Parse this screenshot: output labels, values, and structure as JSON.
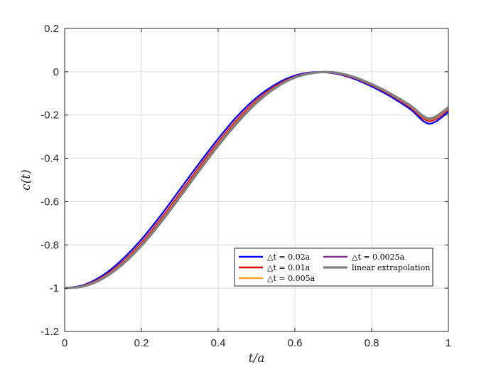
{
  "chart_data": {
    "type": "line",
    "xlabel": "t/a",
    "ylabel": "c(t)",
    "xlim": [
      0,
      1
    ],
    "ylim": [
      -1.2,
      0.2
    ],
    "xticks": [
      0,
      0.2,
      0.4,
      0.6,
      0.8,
      1
    ],
    "xtick_labels": [
      "0",
      "0.2",
      "0.4",
      "0.6",
      "0.8",
      "1"
    ],
    "yticks": [
      0.2,
      0,
      -0.2,
      -0.4,
      -0.6,
      -0.8,
      -1,
      -1.2
    ],
    "ytick_labels": [
      "0.2",
      "0",
      "-0.2",
      "-0.4",
      "-0.6",
      "-0.8",
      "-1",
      "-1.2"
    ],
    "grid": true,
    "legend_position": "bottom-right",
    "x": [
      0,
      0.05,
      0.1,
      0.15,
      0.2,
      0.25,
      0.3,
      0.35,
      0.4,
      0.45,
      0.5,
      0.55,
      0.6,
      0.65,
      0.7,
      0.75,
      0.8,
      0.85,
      0.9,
      0.95,
      1.0
    ],
    "series": [
      {
        "name": "△t = 0.02a",
        "color": "#0000ff",
        "values": [
          -1.0,
          -0.985,
          -0.94,
          -0.868,
          -0.775,
          -0.665,
          -0.545,
          -0.425,
          -0.31,
          -0.205,
          -0.12,
          -0.058,
          -0.018,
          -0.002,
          -0.007,
          -0.03,
          -0.068,
          -0.115,
          -0.172,
          -0.24,
          -0.185
        ]
      },
      {
        "name": "△t = 0.01a",
        "color": "#e8000b",
        "values": [
          -1.0,
          -0.988,
          -0.948,
          -0.88,
          -0.79,
          -0.682,
          -0.563,
          -0.442,
          -0.326,
          -0.22,
          -0.132,
          -0.066,
          -0.023,
          -0.003,
          -0.005,
          -0.026,
          -0.062,
          -0.108,
          -0.163,
          -0.228,
          -0.175
        ]
      },
      {
        "name": "△t = 0.005a",
        "color": "#f5a623",
        "values": [
          -1.0,
          -0.989,
          -0.951,
          -0.885,
          -0.797,
          -0.69,
          -0.572,
          -0.451,
          -0.334,
          -0.228,
          -0.138,
          -0.07,
          -0.025,
          -0.004,
          -0.004,
          -0.024,
          -0.06,
          -0.105,
          -0.159,
          -0.222,
          -0.17
        ]
      },
      {
        "name": "△t = 0.0025a",
        "color": "#7e2f8e",
        "values": [
          -1.0,
          -0.99,
          -0.953,
          -0.888,
          -0.8,
          -0.694,
          -0.576,
          -0.455,
          -0.338,
          -0.232,
          -0.141,
          -0.072,
          -0.026,
          -0.004,
          -0.004,
          -0.023,
          -0.059,
          -0.104,
          -0.157,
          -0.219,
          -0.167
        ]
      },
      {
        "name": "linear extrapolation",
        "color": "#808080",
        "values": [
          -1.0,
          -0.991,
          -0.955,
          -0.891,
          -0.804,
          -0.698,
          -0.58,
          -0.459,
          -0.342,
          -0.236,
          -0.144,
          -0.074,
          -0.027,
          -0.005,
          -0.003,
          -0.022,
          -0.057,
          -0.102,
          -0.155,
          -0.216,
          -0.165
        ]
      }
    ]
  }
}
